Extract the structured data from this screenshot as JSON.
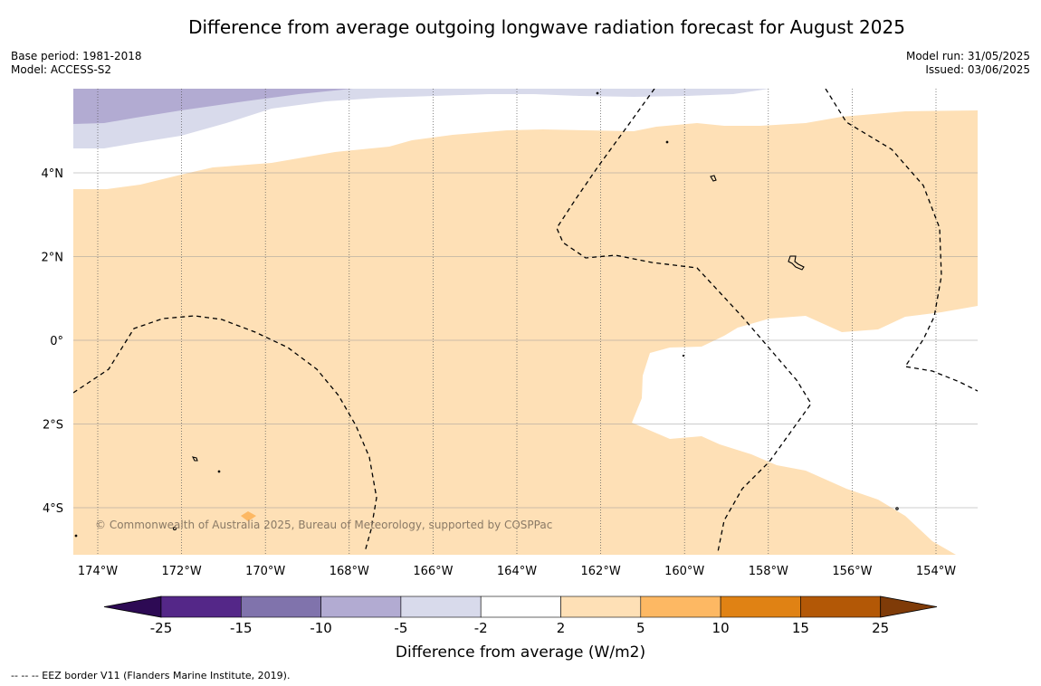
{
  "title": "Difference from average outgoing longwave radiation forecast for August 2025",
  "meta": {
    "base_period": "Base period: 1981-2018",
    "model": "Model: ACCESS-S2",
    "model_run": "Model run: 31/05/2025",
    "issued": "Issued: 03/06/2025"
  },
  "copyright": "© Commonwealth of Australia 2025, Bureau of Meteorology, supported by COSPPac",
  "footer": "--  --  -- EEZ border V11 (Flanders Marine Institute, 2019).",
  "map": {
    "longitude_labels": [
      "174°W",
      "172°W",
      "170°W",
      "168°W",
      "166°W",
      "164°W",
      "162°W",
      "160°W",
      "158°W",
      "156°W",
      "154°W"
    ],
    "latitude_labels": [
      "4°N",
      "2°N",
      "0°",
      "2°S",
      "4°S"
    ]
  },
  "legend": {
    "title": "Difference from average (W/m2)",
    "tick_labels": [
      "-25",
      "-15",
      "-10",
      "-5",
      "-2",
      "2",
      "5",
      "10",
      "15",
      "25"
    ],
    "colors": [
      "#2d0a54",
      "#542788",
      "#8073ac",
      "#b2abd2",
      "#d8daeb",
      "#ffffff",
      "#fee0b6",
      "#fdb863",
      "#e08214",
      "#b35806",
      "#7f3b08"
    ]
  }
}
